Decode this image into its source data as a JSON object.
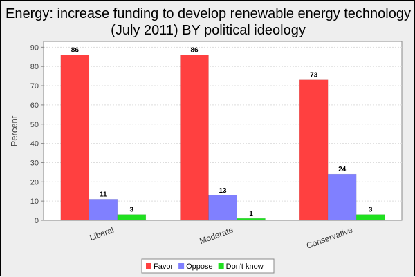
{
  "chart_data": {
    "type": "bar",
    "title_lines": [
      "Energy: increase funding to develop renewable energy technology",
      "(July 2011) BY political ideology"
    ],
    "xlabel": "",
    "ylabel": "Percent",
    "ylim": [
      0,
      93
    ],
    "yticks": [
      0,
      10,
      20,
      30,
      40,
      50,
      60,
      70,
      80,
      90
    ],
    "grid": true,
    "legend_position": "bottom",
    "categories": [
      "Liberal",
      "Moderate",
      "Conservative"
    ],
    "series": [
      {
        "name": "Favor",
        "color": "#ff4040",
        "values": [
          86,
          86,
          73
        ]
      },
      {
        "name": "Oppose",
        "color": "#8080ff",
        "values": [
          11,
          13,
          24
        ]
      },
      {
        "name": "Don't know",
        "color": "#20e020",
        "values": [
          3,
          1,
          3
        ]
      }
    ]
  }
}
